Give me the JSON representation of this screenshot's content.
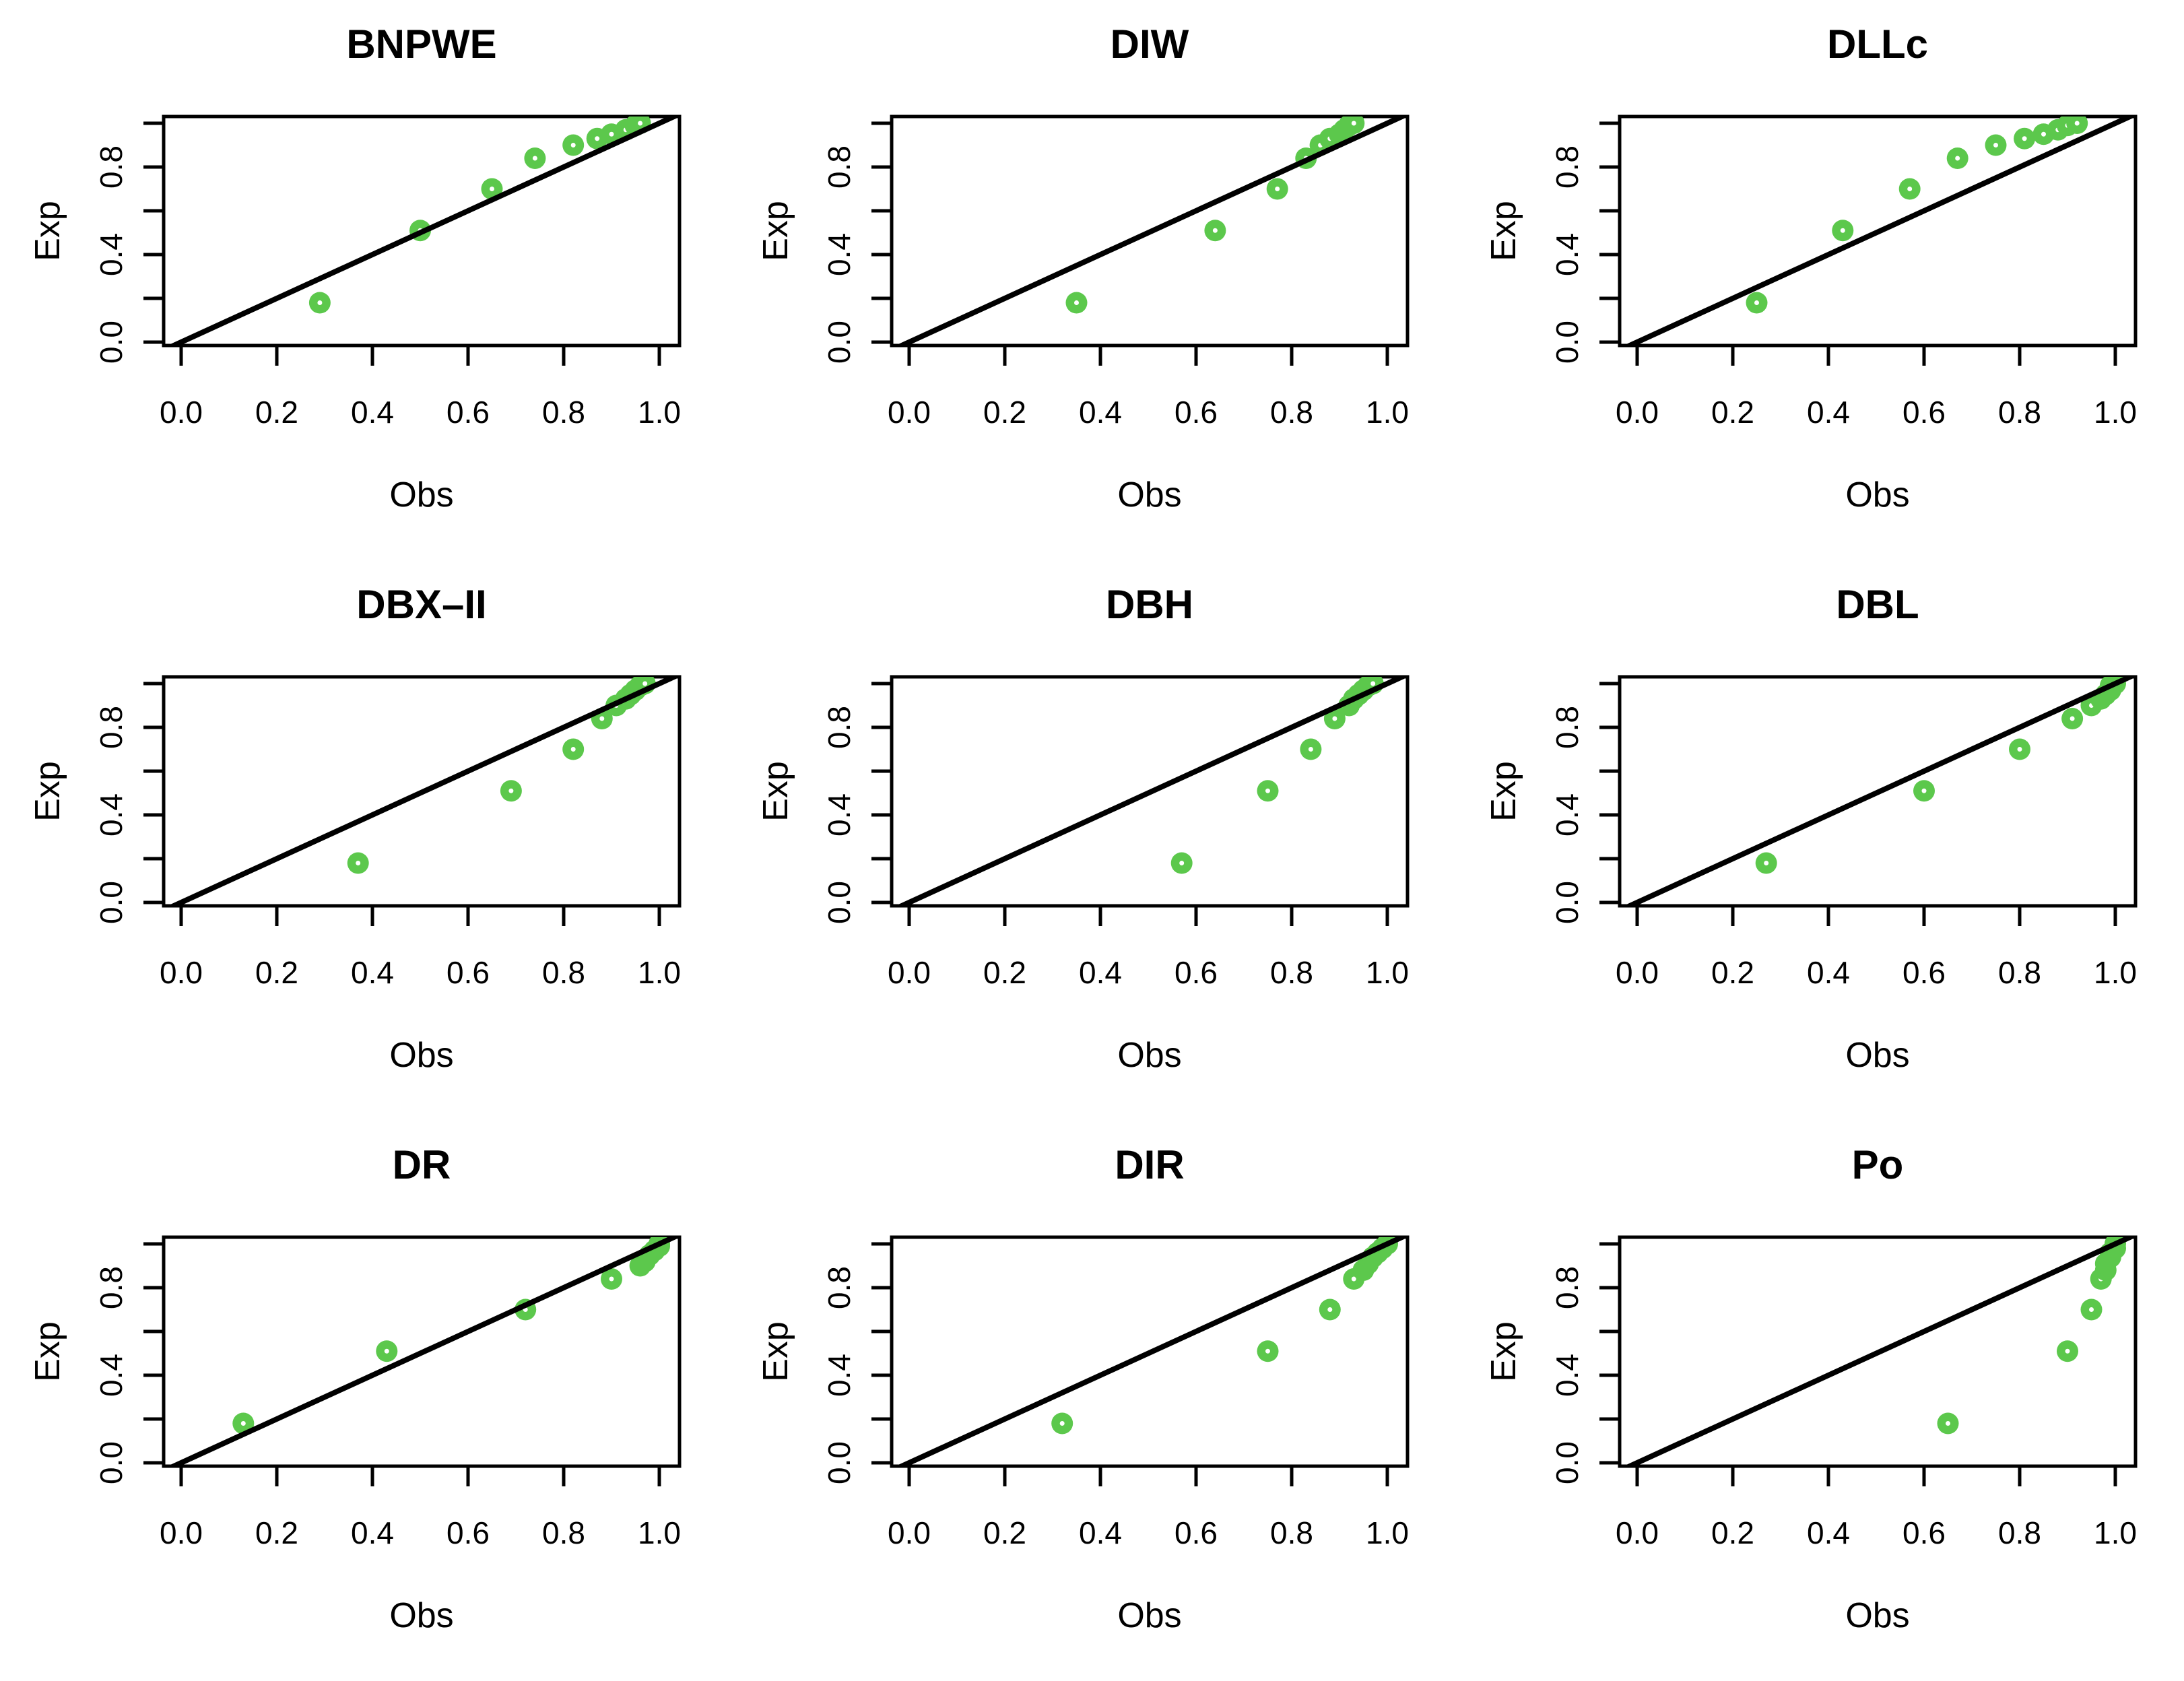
{
  "figure": {
    "background": "#ffffff",
    "point_color": "#5CC84C",
    "point_hole_color": "#ffffff",
    "line_color": "#000000",
    "marker_style": "filled-circle-with-white-center-dot",
    "layout": "3x3-grid-of-scatter-panels"
  },
  "chart_data": [
    {
      "type": "scatter",
      "title": "BNPWE",
      "xlabel": "Obs",
      "ylabel": "Exp",
      "xlim": [
        0,
        1
      ],
      "ylim": [
        0,
        1
      ],
      "grid": false,
      "identity_line": true,
      "x_ticks": [
        0.0,
        0.2,
        0.4,
        0.6,
        0.8,
        1.0
      ],
      "x_tick_labels": [
        "0.0",
        "0.2",
        "0.4",
        "0.6",
        "0.8",
        "1.0"
      ],
      "y_ticks": [
        0.0,
        0.2,
        0.4,
        0.6,
        0.8,
        1.0
      ],
      "y_tick_labels": [
        "0.0",
        "",
        "0.4",
        "",
        "0.8",
        ""
      ],
      "points": {
        "x": [
          0.29,
          0.5,
          0.65,
          0.74,
          0.82,
          0.87,
          0.9,
          0.93,
          0.95,
          0.96
        ],
        "y": [
          0.18,
          0.51,
          0.7,
          0.84,
          0.9,
          0.93,
          0.95,
          0.97,
          0.99,
          1.0
        ]
      }
    },
    {
      "type": "scatter",
      "title": "DIW",
      "xlabel": "Obs",
      "ylabel": "Exp",
      "xlim": [
        0,
        1
      ],
      "ylim": [
        0,
        1
      ],
      "grid": false,
      "identity_line": true,
      "x_ticks": [
        0.0,
        0.2,
        0.4,
        0.6,
        0.8,
        1.0
      ],
      "x_tick_labels": [
        "0.0",
        "0.2",
        "0.4",
        "0.6",
        "0.8",
        "1.0"
      ],
      "y_ticks": [
        0.0,
        0.2,
        0.4,
        0.6,
        0.8,
        1.0
      ],
      "y_tick_labels": [
        "0.0",
        "",
        "0.4",
        "",
        "0.8",
        ""
      ],
      "points": {
        "x": [
          0.35,
          0.64,
          0.77,
          0.83,
          0.86,
          0.88,
          0.9,
          0.91,
          0.92,
          0.93
        ],
        "y": [
          0.18,
          0.51,
          0.7,
          0.84,
          0.9,
          0.93,
          0.95,
          0.97,
          0.99,
          1.0
        ]
      }
    },
    {
      "type": "scatter",
      "title": "DLLc",
      "xlabel": "Obs",
      "ylabel": "Exp",
      "xlim": [
        0,
        1
      ],
      "ylim": [
        0,
        1
      ],
      "grid": false,
      "identity_line": true,
      "x_ticks": [
        0.0,
        0.2,
        0.4,
        0.6,
        0.8,
        1.0
      ],
      "x_tick_labels": [
        "0.0",
        "0.2",
        "0.4",
        "0.6",
        "0.8",
        "1.0"
      ],
      "y_ticks": [
        0.0,
        0.2,
        0.4,
        0.6,
        0.8,
        1.0
      ],
      "y_tick_labels": [
        "0.0",
        "",
        "0.4",
        "",
        "0.8",
        ""
      ],
      "points": {
        "x": [
          0.25,
          0.43,
          0.57,
          0.67,
          0.75,
          0.81,
          0.85,
          0.88,
          0.9,
          0.92
        ],
        "y": [
          0.18,
          0.51,
          0.7,
          0.84,
          0.9,
          0.93,
          0.95,
          0.97,
          0.99,
          1.0
        ]
      }
    },
    {
      "type": "scatter",
      "title": "DBX–II",
      "xlabel": "Obs",
      "ylabel": "Exp",
      "xlim": [
        0,
        1
      ],
      "ylim": [
        0,
        1
      ],
      "grid": false,
      "identity_line": true,
      "x_ticks": [
        0.0,
        0.2,
        0.4,
        0.6,
        0.8,
        1.0
      ],
      "x_tick_labels": [
        "0.0",
        "0.2",
        "0.4",
        "0.6",
        "0.8",
        "1.0"
      ],
      "y_ticks": [
        0.0,
        0.2,
        0.4,
        0.6,
        0.8,
        1.0
      ],
      "y_tick_labels": [
        "0.0",
        "",
        "0.4",
        "",
        "0.8",
        ""
      ],
      "points": {
        "x": [
          0.37,
          0.69,
          0.82,
          0.88,
          0.91,
          0.93,
          0.94,
          0.95,
          0.96,
          0.97
        ],
        "y": [
          0.18,
          0.51,
          0.7,
          0.84,
          0.9,
          0.93,
          0.95,
          0.97,
          0.99,
          1.0
        ]
      }
    },
    {
      "type": "scatter",
      "title": "DBH",
      "xlabel": "Obs",
      "ylabel": "Exp",
      "xlim": [
        0,
        1
      ],
      "ylim": [
        0,
        1
      ],
      "grid": false,
      "identity_line": true,
      "x_ticks": [
        0.0,
        0.2,
        0.4,
        0.6,
        0.8,
        1.0
      ],
      "x_tick_labels": [
        "0.0",
        "0.2",
        "0.4",
        "0.6",
        "0.8",
        "1.0"
      ],
      "y_ticks": [
        0.0,
        0.2,
        0.4,
        0.6,
        0.8,
        1.0
      ],
      "y_tick_labels": [
        "0.0",
        "",
        "0.4",
        "",
        "0.8",
        ""
      ],
      "points": {
        "x": [
          0.57,
          0.75,
          0.84,
          0.89,
          0.92,
          0.93,
          0.94,
          0.95,
          0.96,
          0.97
        ],
        "y": [
          0.18,
          0.51,
          0.7,
          0.84,
          0.9,
          0.93,
          0.95,
          0.97,
          0.99,
          1.0
        ]
      }
    },
    {
      "type": "scatter",
      "title": "DBL",
      "xlabel": "Obs",
      "ylabel": "Exp",
      "xlim": [
        0,
        1
      ],
      "ylim": [
        0,
        1
      ],
      "grid": false,
      "identity_line": true,
      "x_ticks": [
        0.0,
        0.2,
        0.4,
        0.6,
        0.8,
        1.0
      ],
      "x_tick_labels": [
        "0.0",
        "0.2",
        "0.4",
        "0.6",
        "0.8",
        "1.0"
      ],
      "y_ticks": [
        0.0,
        0.2,
        0.4,
        0.6,
        0.8,
        1.0
      ],
      "y_tick_labels": [
        "0.0",
        "",
        "0.4",
        "",
        "0.8",
        ""
      ],
      "points": {
        "x": [
          0.27,
          0.6,
          0.8,
          0.91,
          0.95,
          0.97,
          0.98,
          0.99,
          0.99,
          1.0
        ],
        "y": [
          0.18,
          0.51,
          0.7,
          0.84,
          0.9,
          0.93,
          0.95,
          0.97,
          0.99,
          1.0
        ]
      }
    },
    {
      "type": "scatter",
      "title": "DR",
      "xlabel": "Obs",
      "ylabel": "Exp",
      "xlim": [
        0,
        1
      ],
      "ylim": [
        0,
        1
      ],
      "grid": false,
      "identity_line": true,
      "x_ticks": [
        0.0,
        0.2,
        0.4,
        0.6,
        0.8,
        1.0
      ],
      "x_tick_labels": [
        "0.0",
        "0.2",
        "0.4",
        "0.6",
        "0.8",
        "1.0"
      ],
      "y_ticks": [
        0.0,
        0.2,
        0.4,
        0.6,
        0.8,
        1.0
      ],
      "y_tick_labels": [
        "0.0",
        "",
        "0.4",
        "",
        "0.8",
        ""
      ],
      "points": {
        "x": [
          0.13,
          0.43,
          0.72,
          0.9,
          0.96,
          0.97,
          0.98,
          0.99,
          1.0,
          1.0
        ],
        "y": [
          0.18,
          0.51,
          0.7,
          0.84,
          0.9,
          0.92,
          0.95,
          0.97,
          0.99,
          1.0
        ]
      }
    },
    {
      "type": "scatter",
      "title": "DIR",
      "xlabel": "Obs",
      "ylabel": "Exp",
      "xlim": [
        0,
        1
      ],
      "ylim": [
        0,
        1
      ],
      "grid": false,
      "identity_line": true,
      "x_ticks": [
        0.0,
        0.2,
        0.4,
        0.6,
        0.8,
        1.0
      ],
      "x_tick_labels": [
        "0.0",
        "0.2",
        "0.4",
        "0.6",
        "0.8",
        "1.0"
      ],
      "y_ticks": [
        0.0,
        0.2,
        0.4,
        0.6,
        0.8,
        1.0
      ],
      "y_tick_labels": [
        "0.0",
        "",
        "0.4",
        "",
        "0.8",
        ""
      ],
      "points": {
        "x": [
          0.32,
          0.75,
          0.88,
          0.93,
          0.95,
          0.96,
          0.97,
          0.98,
          0.99,
          1.0
        ],
        "y": [
          0.18,
          0.51,
          0.7,
          0.84,
          0.88,
          0.91,
          0.94,
          0.96,
          0.98,
          1.0
        ]
      }
    },
    {
      "type": "scatter",
      "title": "Po",
      "xlabel": "Obs",
      "ylabel": "Exp",
      "xlim": [
        0,
        1
      ],
      "ylim": [
        0,
        1
      ],
      "grid": false,
      "identity_line": true,
      "x_ticks": [
        0.0,
        0.2,
        0.4,
        0.6,
        0.8,
        1.0
      ],
      "x_tick_labels": [
        "0.0",
        "0.2",
        "0.4",
        "0.6",
        "0.8",
        "1.0"
      ],
      "y_ticks": [
        0.0,
        0.2,
        0.4,
        0.6,
        0.8,
        1.0
      ],
      "y_tick_labels": [
        "0.0",
        "",
        "0.4",
        "",
        "0.8",
        ""
      ],
      "points": {
        "x": [
          0.65,
          0.9,
          0.95,
          0.97,
          0.98,
          0.98,
          0.99,
          0.99,
          1.0,
          1.0
        ],
        "y": [
          0.18,
          0.51,
          0.7,
          0.84,
          0.88,
          0.91,
          0.94,
          0.96,
          0.98,
          1.0
        ]
      }
    }
  ]
}
